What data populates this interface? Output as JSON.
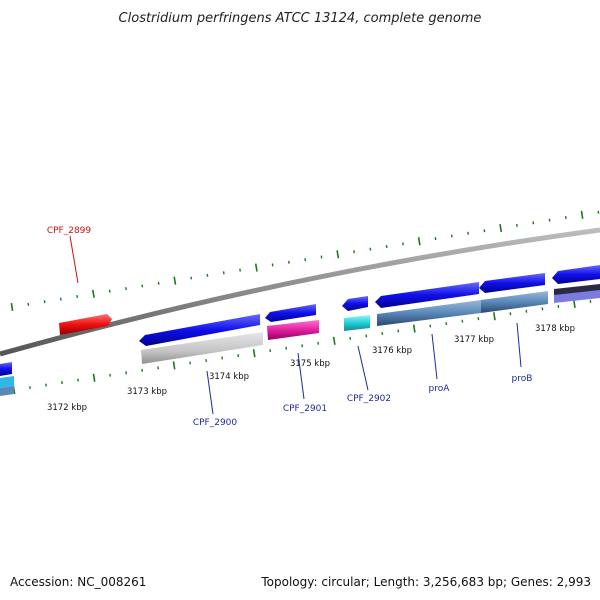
{
  "title": "Clostridium perfringens ATCC 13124, complete genome",
  "footer": {
    "accession": "Accession: NC_008261",
    "summary": "Topology: circular; Length: 3,256,683 bp; Genes: 2,993"
  },
  "colors": {
    "background": "#ffffff",
    "backbone": "#8a8a8a",
    "tick": "#1a7a1a",
    "forward_cds": "#1010e8",
    "reverse_highlight": "#ee1111",
    "label_blue": "#1c2aa0",
    "label_red": "#cc1111",
    "gray_feature": "#c4c4c4",
    "magenta_feature": "#e020a0",
    "cyan_feature": "#20d0d8",
    "steel_feature": "#5a88b8",
    "dark_feature": "#202040"
  },
  "scale_labels": [
    "3172 kbp",
    "3173 kbp",
    "3174 kbp",
    "3175 kbp",
    "3176 kbp",
    "3177 kbp",
    "3178 kbp"
  ],
  "gene_labels": [
    {
      "id": "cpf2899",
      "text": "CPF_2899",
      "color": "label_red"
    },
    {
      "id": "cpf2900",
      "text": "CPF_2900",
      "color": "label_blue"
    },
    {
      "id": "cpf2901",
      "text": "CPF_2901",
      "color": "label_blue"
    },
    {
      "id": "cpf2902",
      "text": "CPF_2902",
      "color": "label_blue"
    },
    {
      "id": "proa",
      "text": "proA",
      "color": "label_blue"
    },
    {
      "id": "prob",
      "text": "proB",
      "color": "label_blue"
    }
  ]
}
